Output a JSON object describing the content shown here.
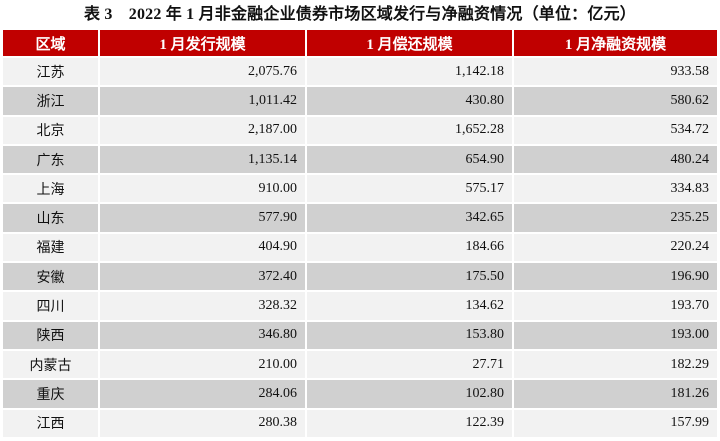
{
  "title": "表 3　2022 年 1 月非金融企业债券市场区域发行与净融资情况（单位：亿元）",
  "headers": [
    "区域",
    "1 月发行规模",
    "1 月偿还规模",
    "1 月净融资规模"
  ],
  "colors": {
    "header_bg": "#c00000",
    "row_light": "#f2f2f2",
    "row_dark": "#d0d0d0"
  },
  "rows": [
    [
      "江苏",
      "2,075.76",
      "1,142.18",
      "933.58"
    ],
    [
      "浙江",
      "1,011.42",
      "430.80",
      "580.62"
    ],
    [
      "北京",
      "2,187.00",
      "1,652.28",
      "534.72"
    ],
    [
      "广东",
      "1,135.14",
      "654.90",
      "480.24"
    ],
    [
      "上海",
      "910.00",
      "575.17",
      "334.83"
    ],
    [
      "山东",
      "577.90",
      "342.65",
      "235.25"
    ],
    [
      "福建",
      "404.90",
      "184.66",
      "220.24"
    ],
    [
      "安徽",
      "372.40",
      "175.50",
      "196.90"
    ],
    [
      "四川",
      "328.32",
      "134.62",
      "193.70"
    ],
    [
      "陕西",
      "346.80",
      "153.80",
      "193.00"
    ],
    [
      "内蒙古",
      "210.00",
      "27.71",
      "182.29"
    ],
    [
      "重庆",
      "284.06",
      "102.80",
      "181.26"
    ],
    [
      "江西",
      "280.38",
      "122.39",
      "157.99"
    ]
  ]
}
